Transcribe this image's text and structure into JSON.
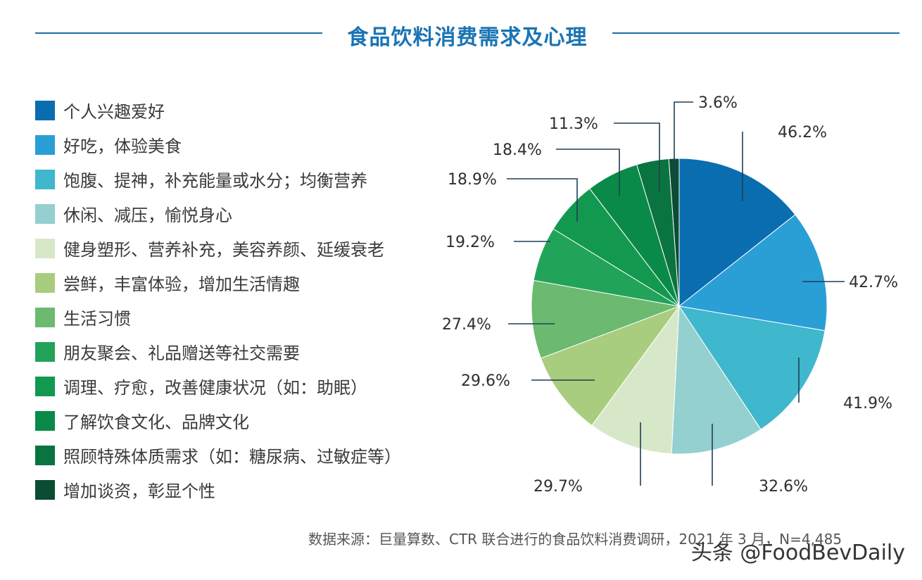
{
  "chart_data": {
    "type": "pie",
    "title": "食品饮料消费需求及心理",
    "categories": [
      "个人兴趣爱好",
      "好吃，体验美食",
      "饱腹、提神，补充能量或水分；均衡营养",
      "休闲、减压，愉悦身心",
      "健身塑形、营养补充，美容养颜、延缓衰老",
      "尝鲜，丰富体验，增加生活情趣",
      "生活习惯",
      "朋友聚会、礼品赠送等社交需要",
      "调理、疗愈，改善健康状况（如：助眠）",
      "了解饮食文化、品牌文化",
      "照顾特殊体质需求（如：糖尿病、过敏症等）",
      "增加谈资，彰显个性"
    ],
    "values": [
      46.2,
      42.7,
      41.9,
      32.6,
      29.7,
      29.6,
      27.4,
      19.2,
      18.9,
      18.4,
      11.3,
      3.6
    ],
    "value_labels": [
      "46.2%",
      "42.7%",
      "41.9%",
      "32.6%",
      "29.7%",
      "29.6%",
      "27.4%",
      "19.2%",
      "18.9%",
      "18.4%",
      "11.3%",
      "3.6%"
    ],
    "colors": [
      "#0a6db0",
      "#2a9fd6",
      "#3fb7cc",
      "#93d0cf",
      "#d7e8c8",
      "#a8cd7e",
      "#6bba6f",
      "#22a35a",
      "#12994f",
      "#0a8a48",
      "#0a7440",
      "#0a4d32"
    ],
    "legend_position": "left",
    "grid": false
  },
  "source": "数据来源：巨量算数、CTR 联合进行的食品饮料消费调研，2021 年 3 月，N=4,485",
  "watermark": "头条 @FoodBevDaily"
}
